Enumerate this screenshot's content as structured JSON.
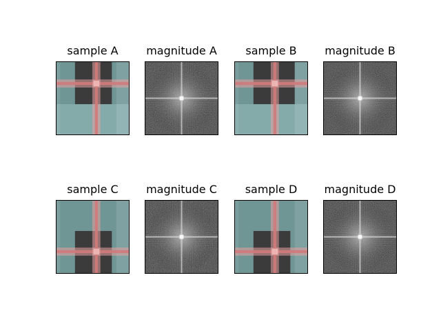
{
  "chart_data": {
    "type": "image-grid",
    "rows": 2,
    "columns": 4,
    "panels": [
      {
        "title": "sample A",
        "kind": "plaid",
        "variant": "a"
      },
      {
        "title": "magnitude A",
        "kind": "spectrum",
        "variant": "a"
      },
      {
        "title": "sample B",
        "kind": "plaid",
        "variant": "b"
      },
      {
        "title": "magnitude B",
        "kind": "spectrum",
        "variant": "b"
      },
      {
        "title": "sample C",
        "kind": "plaid",
        "variant": "c"
      },
      {
        "title": "magnitude C",
        "kind": "spectrum",
        "variant": "c"
      },
      {
        "title": "sample D",
        "kind": "plaid",
        "variant": "d"
      },
      {
        "title": "magnitude D",
        "kind": "spectrum",
        "variant": "d"
      }
    ],
    "colors": {
      "teal": "#6f9595",
      "teal_light": "#84aaaa",
      "dark": "#3b3b3b",
      "stripe_red": "#d07a7a",
      "stripe_pink": "#e6a0a0",
      "spectrum_bg": "#3a3a3a",
      "spectrum_mid": "#8a8a8a",
      "spectrum_high": "#e8e8e8"
    }
  }
}
